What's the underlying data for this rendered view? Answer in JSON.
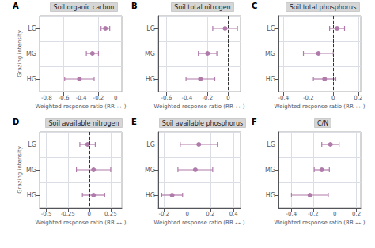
{
  "chart_data": [
    {
      "type": "scatter",
      "annotation": "A",
      "title": "Soil organic carbon",
      "categories": [
        "LG",
        "MG",
        "HG"
      ],
      "values": [
        -0.12,
        -0.27,
        -0.42
      ],
      "errors_low": [
        0.05,
        0.07,
        0.17
      ],
      "errors_high": [
        0.05,
        0.07,
        0.17
      ],
      "xlim": [
        -0.88,
        0.07
      ],
      "xticks": [
        -0.8,
        -0.6,
        -0.4,
        -0.2,
        0
      ],
      "xlabel": "Weighted response ratio (RR ₊₊ )",
      "ylabel": "Grazing intensity",
      "reference_x": 0,
      "color": "#b07aaa",
      "grid": true
    },
    {
      "type": "scatter",
      "annotation": "B",
      "title": "Soil total nitrogen",
      "categories": [
        "LG",
        "MG",
        "HG"
      ],
      "values": [
        -0.03,
        -0.2,
        -0.27
      ],
      "errors_low": [
        0.12,
        0.09,
        0.14
      ],
      "errors_high": [
        0.12,
        0.09,
        0.14
      ],
      "xlim": [
        -0.68,
        0.12
      ],
      "xticks": [
        -0.6,
        -0.4,
        -0.2,
        0
      ],
      "xlabel": "Weighted response ratio (RR ₊₊ )",
      "reference_x": 0,
      "color": "#b07aaa",
      "grid": true
    },
    {
      "type": "scatter",
      "annotation": "C",
      "title": "Soil total phosphorus",
      "categories": [
        "LG",
        "MG",
        "HG"
      ],
      "values": [
        0.03,
        -0.12,
        -0.07
      ],
      "errors_low": [
        0.06,
        0.12,
        0.09
      ],
      "errors_high": [
        0.06,
        0.12,
        0.09
      ],
      "xlim": [
        -0.44,
        0.22
      ],
      "xticks": [
        -0.4,
        -0.2,
        0,
        0.2
      ],
      "xlabel": "Weighted response ratio (RR ₊₊ )",
      "reference_x": 0,
      "color": "#b07aaa",
      "grid": true
    },
    {
      "type": "scatter",
      "annotation": "D",
      "title": "Soil available nitrogen",
      "categories": [
        "LG",
        "MG",
        "HG"
      ],
      "values": [
        -0.02,
        0.05,
        0.05
      ],
      "errors_low": [
        0.09,
        0.2,
        0.13
      ],
      "errors_high": [
        0.09,
        0.2,
        0.13
      ],
      "xlim": [
        -0.58,
        0.38
      ],
      "xticks": [
        -0.5,
        -0.25,
        0,
        0.25
      ],
      "xlabel": "Weighted response ratio (RR ₊₊ )",
      "ylabel": "Grazing intensity",
      "reference_x": 0,
      "color": "#b07aaa",
      "grid": true
    },
    {
      "type": "scatter",
      "annotation": "E",
      "title": "Soil available phosphorus",
      "categories": [
        "LG",
        "MG",
        "HG"
      ],
      "values": [
        0.1,
        0.07,
        -0.13
      ],
      "errors_low": [
        0.16,
        0.15,
        0.09
      ],
      "errors_high": [
        0.16,
        0.15,
        0.09
      ],
      "xlim": [
        -0.25,
        0.46
      ],
      "xticks": [
        -0.2,
        0,
        0.2,
        0.4
      ],
      "xlabel": "Weighted response ratio (RR ₊₊ )",
      "reference_x": 0,
      "color": "#b07aaa",
      "grid": true
    },
    {
      "type": "scatter",
      "annotation": "F",
      "title": "C/N",
      "categories": [
        "LG",
        "MG",
        "HG"
      ],
      "values": [
        -0.04,
        -0.12,
        -0.23
      ],
      "errors_low": [
        0.08,
        0.07,
        0.17
      ],
      "errors_high": [
        0.08,
        0.07,
        0.17
      ],
      "xlim": [
        -0.52,
        0.24
      ],
      "xticks": [
        -0.4,
        -0.2,
        0,
        0.2
      ],
      "xlabel": "Weighted response ratio (RR ₊₊ )",
      "reference_x": 0,
      "color": "#b07aaa",
      "grid": true
    }
  ]
}
